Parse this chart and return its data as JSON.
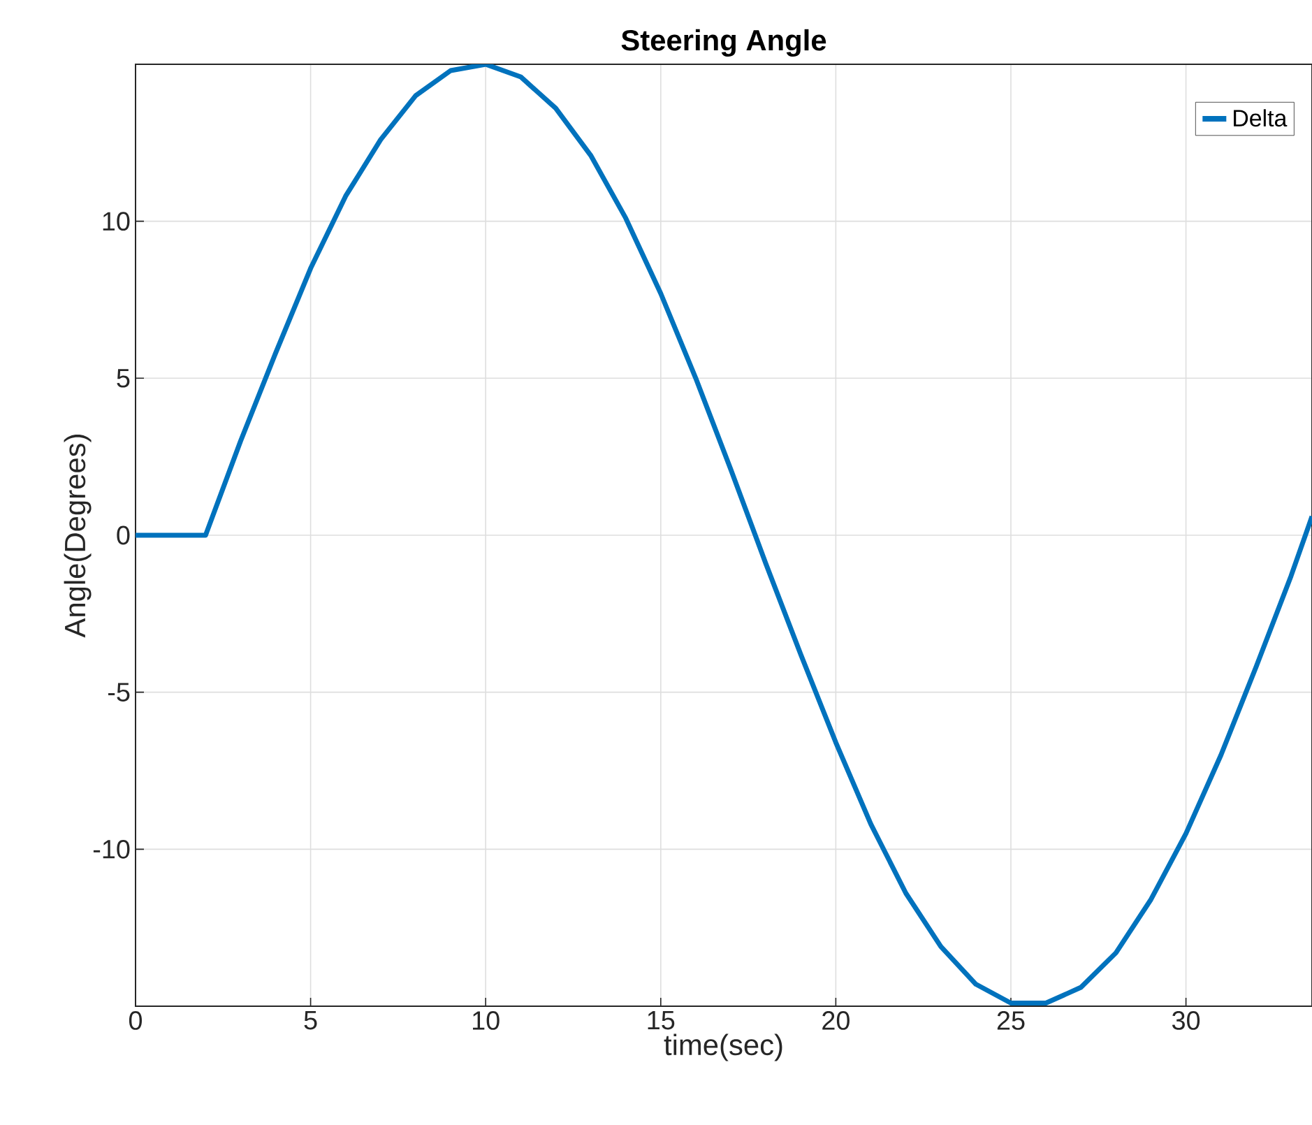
{
  "chart_data": {
    "type": "line",
    "title": "Steering Angle",
    "xlabel": "time(sec)",
    "ylabel": "Angle(Degrees)",
    "x": [
      0,
      1,
      2,
      3,
      4,
      5,
      6,
      7,
      8,
      9,
      10,
      11,
      12,
      13,
      14,
      15,
      16,
      17,
      18,
      19,
      20,
      21,
      22,
      23,
      24,
      25,
      26,
      27,
      28,
      29,
      30,
      31,
      32,
      33,
      33.6
    ],
    "series": [
      {
        "name": "Delta",
        "color": "#0072bd",
        "values": [
          0,
          0,
          0,
          3.0,
          5.8,
          8.5,
          10.8,
          12.6,
          14.0,
          14.8,
          15.0,
          14.6,
          13.6,
          12.1,
          10.1,
          7.7,
          5.0,
          2.1,
          -0.9,
          -3.8,
          -6.6,
          -9.2,
          -11.4,
          -13.1,
          -14.3,
          -14.9,
          -14.9,
          -14.4,
          -13.3,
          -11.6,
          -9.5,
          -7.0,
          -4.2,
          -1.3,
          0.6
        ]
      }
    ],
    "xlim": [
      0,
      33.6
    ],
    "ylim": [
      -15,
      15
    ],
    "xticks": [
      0,
      5,
      10,
      15,
      20,
      25,
      30
    ],
    "yticks": [
      -10,
      -5,
      0,
      5,
      10
    ],
    "grid": true,
    "legend": "top right"
  }
}
